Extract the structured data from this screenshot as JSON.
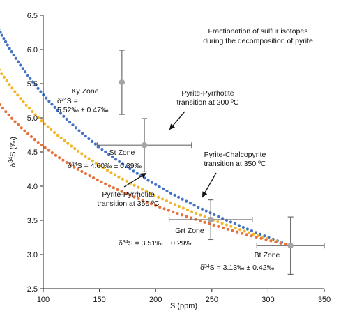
{
  "chart_data": {
    "type": "scatter",
    "title": "Fractionation of sulfur isotopes\nduring the decomposition of pyrite",
    "xlabel": "S (ppm)",
    "ylabel": "δ34S (‰)",
    "xlim": [
      100,
      350
    ],
    "ylim": [
      2.5,
      6.5
    ],
    "xticks": [
      "100",
      "150",
      "200",
      "250",
      "300",
      "350"
    ],
    "yticks": [
      "2.5",
      "3.0",
      "3.5",
      "4.0",
      "4.5",
      "5.0",
      "5.5",
      "6.0",
      "6.5"
    ],
    "grid": false,
    "series": [
      {
        "color": "#4472c4",
        "endpoint": [
          320,
          3.13
        ],
        "alpha": 1.9
      },
      {
        "color": "#f2b62a",
        "endpoint": [
          320,
          3.13
        ],
        "alpha": 1.55
      },
      {
        "color": "#e8703a",
        "endpoint": [
          320,
          3.13
        ],
        "alpha": 1.25
      }
    ],
    "zones": [
      {
        "label": "Ky Zone",
        "value": "δ34S =\n5.52‰ ± 0.47‰",
        "x": 170,
        "y": 5.52,
        "x_err": 0,
        "y_err": 0.47
      },
      {
        "label": "St Zone",
        "value": "δ34S = 4.60‰ ± 0.39‰",
        "x": 190,
        "y": 4.6,
        "x_err": 42,
        "y_err": 0.39
      },
      {
        "label": "Grt Zone",
        "value": "δ34S = 3.51‰ ± 0.29‰",
        "x": 249,
        "y": 3.51,
        "x_err": 37,
        "y_err": 0.29
      },
      {
        "label": "Bt Zone",
        "value": "δ34S = 3.13‰ ± 0.42‰",
        "x": 320,
        "y": 3.13,
        "x_err": 30,
        "y_err": 0.42
      }
    ],
    "annotations": [
      {
        "text": "Pyrite-Pyrrhotite\ntransition at 200 ºC"
      },
      {
        "text": "Pyrite-Chalcopyrite\ntransition at 350 ºC"
      },
      {
        "text": "Pyrite-Pyrrhotite\ntransition at 350 ºC"
      }
    ]
  }
}
